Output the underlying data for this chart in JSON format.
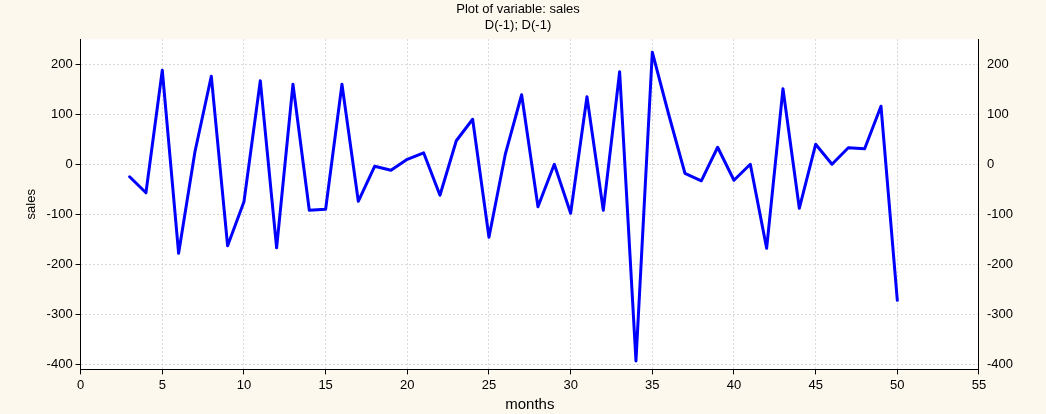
{
  "chart_data": {
    "type": "line",
    "title": "Plot of variable: sales",
    "subtitle": "D(-1); D(-1)",
    "xlabel": "months",
    "ylabel": "sales",
    "x": [
      3,
      4,
      5,
      6,
      7,
      8,
      9,
      10,
      11,
      12,
      13,
      14,
      15,
      16,
      17,
      18,
      19,
      20,
      21,
      22,
      23,
      24,
      25,
      26,
      27,
      28,
      29,
      30,
      31,
      32,
      33,
      34,
      35,
      36,
      37,
      38,
      39,
      40,
      41,
      42,
      43,
      44,
      45,
      46,
      47,
      48,
      49,
      50
    ],
    "series": [
      {
        "color": "#0000ff",
        "values": [
          -25,
          -57,
          188,
          -178,
          25,
          176,
          -163,
          -75,
          167,
          -167,
          160,
          -92,
          -90,
          160,
          -74,
          -4,
          -12,
          10,
          23,
          -62,
          47,
          90,
          -146,
          20,
          139,
          -85,
          0,
          -98,
          135,
          -92,
          185,
          -393,
          224,
          100,
          -18,
          -33,
          34,
          -32,
          0,
          -168,
          151,
          -88,
          40,
          0,
          33,
          31,
          116,
          -272
        ]
      }
    ],
    "xlim": [
      0,
      55
    ],
    "xticks": [
      0,
      5,
      10,
      15,
      20,
      25,
      30,
      35,
      40,
      45,
      50,
      55
    ],
    "ylim": [
      -410,
      250
    ],
    "yticks": [
      -400,
      -300,
      -200,
      -100,
      0,
      100,
      200
    ],
    "y2lim": [
      -410,
      250
    ],
    "y2ticks": [
      -400,
      -300,
      -200,
      -100,
      0,
      100,
      200
    ],
    "grid": true,
    "legend": false,
    "marker": "none",
    "line_style": "solid"
  }
}
